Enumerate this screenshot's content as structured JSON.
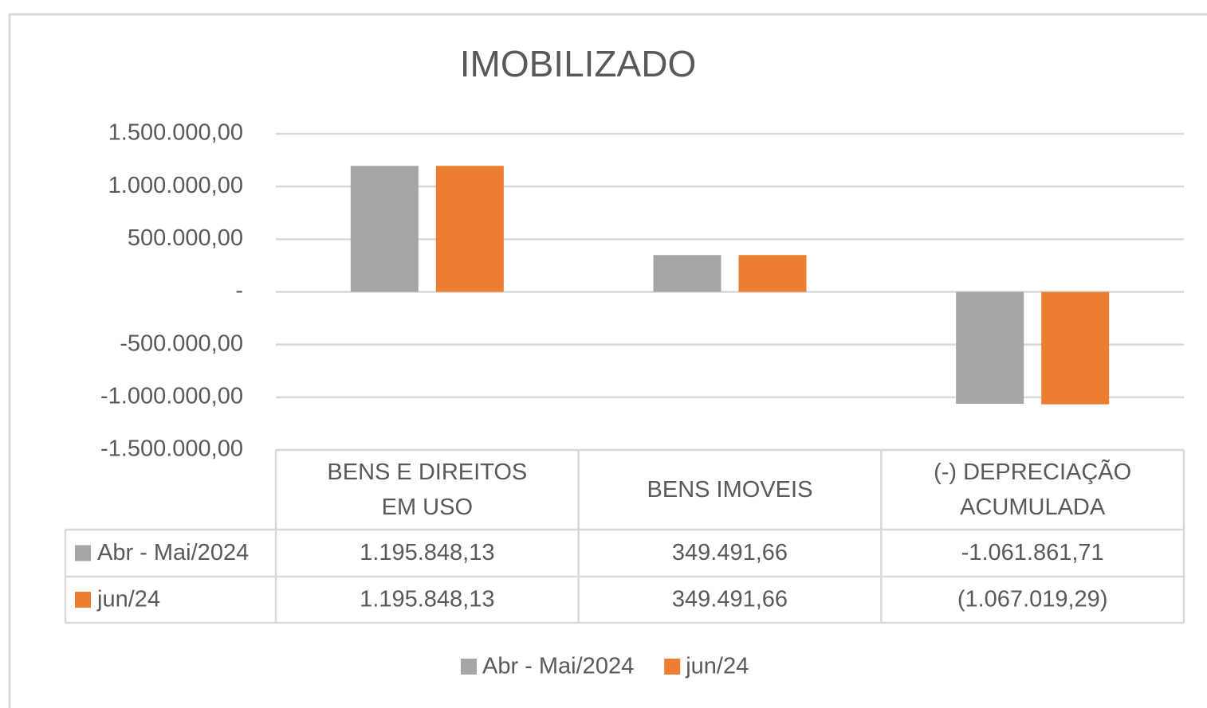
{
  "chart_data": {
    "type": "bar",
    "title": "IMOBILIZADO",
    "categories": [
      "BENS E DIREITOS EM USO",
      "BENS IMOVEIS",
      "(-) DEPRECIAÇÃO ACUMULADA"
    ],
    "series": [
      {
        "name": "Abr - Mai/2024",
        "color": "#a5a5a5",
        "values": [
          1195848.13,
          349491.66,
          -1061861.71
        ],
        "value_labels": [
          "1.195.848,13",
          "349.491,66",
          "-1.061.861,71"
        ]
      },
      {
        "name": "jun/24",
        "color": "#ed7d31",
        "values": [
          1195848.13,
          349491.66,
          -1067019.29
        ],
        "value_labels": [
          "1.195.848,13",
          "349.491,66",
          "(1.067.019,29)"
        ]
      }
    ],
    "ylim": [
      -1500000,
      1500000
    ],
    "yticks": [
      {
        "value": 1500000,
        "label": "1.500.000,00"
      },
      {
        "value": 1000000,
        "label": "1.000.000,00"
      },
      {
        "value": 500000,
        "label": "500.000,00"
      },
      {
        "value": 0,
        "label": "-"
      },
      {
        "value": -500000,
        "label": "-500.000,00"
      },
      {
        "value": -1000000,
        "label": "-1.000.000,00"
      },
      {
        "value": -1500000,
        "label": "-1.500.000,00"
      }
    ],
    "grid": true,
    "legend": "bottom"
  }
}
